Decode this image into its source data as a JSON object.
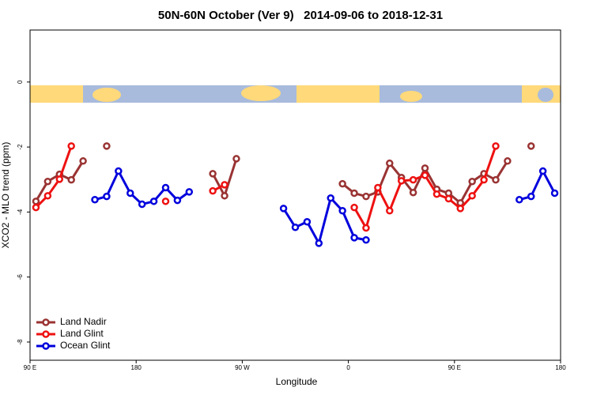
{
  "chart_data": {
    "type": "line",
    "title": "50N-60N October (Ver 9)   2014-09-06 to 2018-12-31",
    "x_label": "Longitude",
    "y_label": "XCO2 - MLO trend (ppm)",
    "xlim": [
      90,
      540
    ],
    "xticks": [
      {
        "value": 90,
        "label": "90 E"
      },
      {
        "value": 180,
        "label": "180"
      },
      {
        "value": 270,
        "label": "90 W"
      },
      {
        "value": 360,
        "label": "0"
      },
      {
        "value": 450,
        "label": "90 E"
      },
      {
        "value": 540,
        "label": "180"
      }
    ],
    "ylim": [
      -8.56,
      1.6
    ],
    "yticks": [
      0,
      -2,
      -4,
      -6,
      -8
    ],
    "legend": "bottom-left",
    "series": [
      {
        "name": "Land Nadir",
        "color": "#9a3333",
        "x": [
          95,
          105,
          115,
          125,
          135,
          145,
          155,
          165,
          245,
          255,
          265,
          275,
          355,
          365,
          375,
          385,
          395,
          405,
          415,
          425,
          435,
          445,
          455,
          465,
          475,
          485,
          495,
          505,
          515
        ],
        "values": [
          -3.67,
          -3.06,
          -2.84,
          -3.01,
          -2.43,
          null,
          -1.97,
          null,
          -2.82,
          -3.5,
          -2.36,
          null,
          -3.13,
          -3.42,
          -3.52,
          -3.38,
          -2.5,
          -2.94,
          -3.4,
          -2.65,
          -3.3,
          -3.42,
          -3.72,
          -3.06,
          -2.82,
          -3.01,
          -2.43,
          null,
          -1.97
        ]
      },
      {
        "name": "Land Glint",
        "color": "#ee1111",
        "x": [
          95,
          105,
          115,
          125,
          135,
          205,
          215,
          245,
          255,
          265,
          365,
          375,
          385,
          395,
          405,
          415,
          425,
          435,
          445,
          455,
          465,
          475,
          485
        ],
        "values": [
          -3.86,
          -3.5,
          -2.99,
          -1.97,
          null,
          -3.67,
          null,
          -3.35,
          -3.16,
          null,
          -3.86,
          -4.49,
          -3.25,
          -3.96,
          -3.04,
          -3.01,
          -2.87,
          -3.45,
          -3.59,
          -3.89,
          -3.5,
          -3.01,
          -1.97
        ]
      },
      {
        "name": "Ocean Glint",
        "color": "#0000dd",
        "x": [
          145,
          155,
          165,
          175,
          185,
          195,
          205,
          215,
          225,
          235,
          305,
          315,
          325,
          335,
          345,
          355,
          365,
          375,
          385,
          505,
          515,
          525,
          535
        ],
        "values": [
          -3.62,
          -3.52,
          -2.74,
          -3.42,
          -3.76,
          -3.67,
          -3.25,
          -3.64,
          -3.38,
          null,
          -3.89,
          -4.47,
          -4.3,
          -4.96,
          -3.57,
          -3.96,
          -4.79,
          -4.86,
          null,
          -3.62,
          -3.52,
          -2.74,
          -3.42
        ]
      }
    ]
  }
}
